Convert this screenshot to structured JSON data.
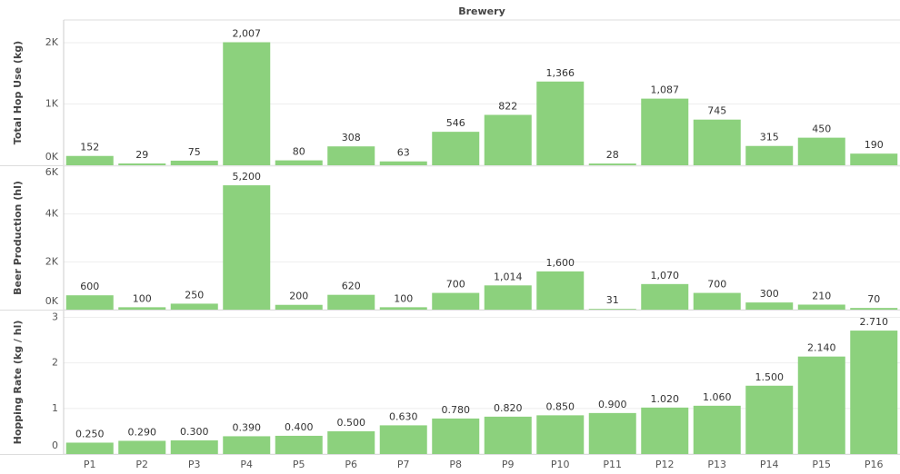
{
  "header": "Brewery",
  "chart_data": [
    {
      "type": "bar",
      "y_label": "Total Hop Use (kg)",
      "color": "#8cd17d",
      "grid": true,
      "values": [
        152,
        29,
        75,
        2007,
        80,
        308,
        63,
        546,
        822,
        1366,
        28,
        1087,
        745,
        315,
        450,
        190
      ],
      "value_labels": [
        "152",
        "29",
        "75",
        "2,007",
        "80",
        "308",
        "63",
        "546",
        "822",
        "1,366",
        "28",
        "1,087",
        "745",
        "315",
        "450",
        "190"
      ],
      "ylim": [
        0,
        2370
      ],
      "yticks": [
        {
          "value": 0,
          "label": "0K"
        },
        {
          "value": 1000,
          "label": "1K"
        },
        {
          "value": 2000,
          "label": "2K"
        }
      ]
    },
    {
      "type": "bar",
      "y_label": "Beer Production (hl)",
      "color": "#8cd17d",
      "grid": true,
      "values": [
        600,
        100,
        250,
        5200,
        200,
        620,
        100,
        700,
        1014,
        1600,
        31,
        1070,
        700,
        300,
        210,
        70
      ],
      "value_labels": [
        "600",
        "100",
        "250",
        "5,200",
        "200",
        "620",
        "100",
        "700",
        "1,014",
        "1,600",
        "31",
        "1,070",
        "700",
        "300",
        "210",
        "70"
      ],
      "ylim": [
        0,
        6000
      ],
      "yticks": [
        {
          "value": 0,
          "label": "0K"
        },
        {
          "value": 2000,
          "label": "2K"
        },
        {
          "value": 4000,
          "label": "4K"
        },
        {
          "value": 6000,
          "label": "6K"
        }
      ]
    },
    {
      "type": "bar",
      "y_label": "Hopping Rate (kg / hl)",
      "color": "#8cd17d",
      "grid": true,
      "categories": [
        "P1",
        "P2",
        "P3",
        "P4",
        "P5",
        "P6",
        "P7",
        "P8",
        "P9",
        "P10",
        "P11",
        "P12",
        "P13",
        "P14",
        "P15",
        "P16"
      ],
      "values": [
        0.25,
        0.29,
        0.3,
        0.39,
        0.4,
        0.5,
        0.63,
        0.78,
        0.82,
        0.85,
        0.9,
        1.02,
        1.06,
        1.5,
        2.14,
        2.71
      ],
      "value_labels": [
        "0.250",
        "0.290",
        "0.300",
        "0.390",
        "0.400",
        "0.500",
        "0.630",
        "0.780",
        "0.820",
        "0.850",
        "0.900",
        "1.020",
        "1.060",
        "1.500",
        "2.140",
        "2.710"
      ],
      "ylim": [
        0,
        3.15
      ],
      "yticks": [
        0,
        1,
        2,
        3
      ]
    }
  ]
}
